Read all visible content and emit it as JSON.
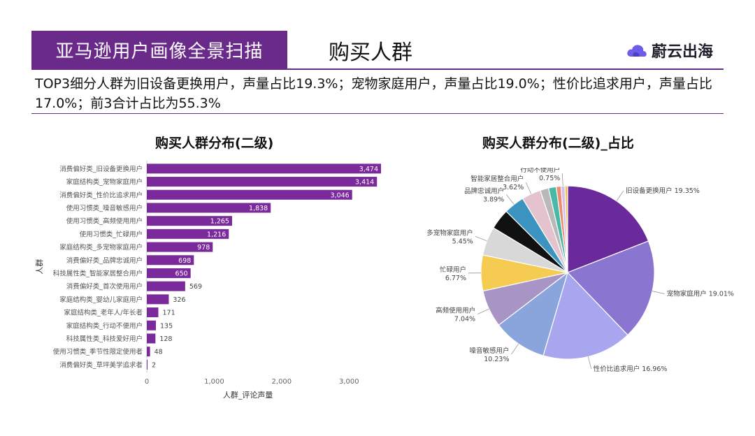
{
  "header": {
    "banner": "亚马逊用户画像全景扫描",
    "section_title": "购买人群",
    "brand_name": "蔚云出海"
  },
  "summary": "TOP3细分人群为旧设备更换用户，声量占比19.3%；宠物家庭用户，声量占比19.0%；性价比追求用户，声量占比17.0%；前3合计占比为55.3%",
  "colors": {
    "bar": "#7a2a9a",
    "brand_icon": "#6c5ce7",
    "rule": "#6a2a8a"
  },
  "chart_data": [
    {
      "type": "bar",
      "orientation": "horizontal",
      "title": "购买人群分布(二级)",
      "xlabel": "人群_评论声量",
      "ylabel": "人群",
      "xlim": [
        0,
        3474
      ],
      "xticks": [
        0,
        1000,
        2000,
        3000
      ],
      "xtick_labels": [
        "0",
        "1,000",
        "2,000",
        "3,000"
      ],
      "categories": [
        "消费偏好类_旧设备更换用户",
        "家庭结构类_宠物家庭用户",
        "消费偏好类_性价比追求用户",
        "使用习惯类_噪音敏感用户",
        "使用习惯类_高频使用用户",
        "使用习惯类_忙碌用户",
        "家庭结构类_多宠物家庭用户",
        "消费偏好类_品牌忠诚用户",
        "科技属性类_智能家居整合用户",
        "消费偏好类_首次使用用户",
        "家庭结构类_婴幼儿家庭用户",
        "家庭结构类_老年人/年长者",
        "家庭结构类_行动不便用户",
        "科技属性类_科技爱好用户",
        "使用习惯类_季节性限定使用者",
        "消费偏好类_草坪美学追求者"
      ],
      "values": [
        3474,
        3414,
        3046,
        1838,
        1265,
        1216,
        978,
        698,
        650,
        569,
        326,
        171,
        135,
        128,
        48,
        2
      ],
      "value_labels": [
        "3,474",
        "3,414",
        "3,046",
        "1,838",
        "1,265",
        "1,216",
        "978",
        "698",
        "650",
        "569",
        "326",
        "171",
        "135",
        "128",
        "48",
        "2"
      ]
    },
    {
      "type": "pie",
      "title": "购买人群分布(二级)_占比",
      "slices": [
        {
          "label": "旧设备更换用户",
          "value": 19.35,
          "text": "19.35%",
          "color": "#6a2a9c"
        },
        {
          "label": "宠物家庭用户",
          "value": 19.01,
          "text": "19.01%",
          "color": "#8a76d0"
        },
        {
          "label": "性价比追求用户",
          "value": 16.96,
          "text": "16.96%",
          "color": "#a8a6ef"
        },
        {
          "label": "噪音敏感用户",
          "value": 10.23,
          "text": "10.23%",
          "color": "#8aa5dc"
        },
        {
          "label": "高频使用用户",
          "value": 7.04,
          "text": "7.04%",
          "color": "#a895c6"
        },
        {
          "label": "忙碌用户",
          "value": 6.77,
          "text": "6.77%",
          "color": "#f5cb52"
        },
        {
          "label": "多宠物家庭用户",
          "value": 5.45,
          "text": "5.45%",
          "color": "#d8d8d8"
        },
        {
          "label": "",
          "value": 3.9,
          "text": "",
          "color": "#111111"
        },
        {
          "label": "品牌忠诚用户",
          "value": 3.89,
          "text": "3.89%",
          "color": "#3a94bf"
        },
        {
          "label": "智能家居整合用户",
          "value": 3.62,
          "text": "3.62%",
          "color": "#e4c3cf"
        },
        {
          "label": "",
          "value": 1.6,
          "text": "",
          "color": "#b9b9b9"
        },
        {
          "label": "",
          "value": 1.45,
          "text": "",
          "color": "#47b9a6"
        },
        {
          "label": "",
          "value": 0.9,
          "text": "",
          "color": "#f08a70"
        },
        {
          "label": "行动不便用户",
          "value": 0.75,
          "text": "0.75%",
          "color": "#d8bfe8"
        },
        {
          "label": "",
          "value": 0.5,
          "text": "",
          "color": "#eec04d"
        }
      ]
    }
  ]
}
